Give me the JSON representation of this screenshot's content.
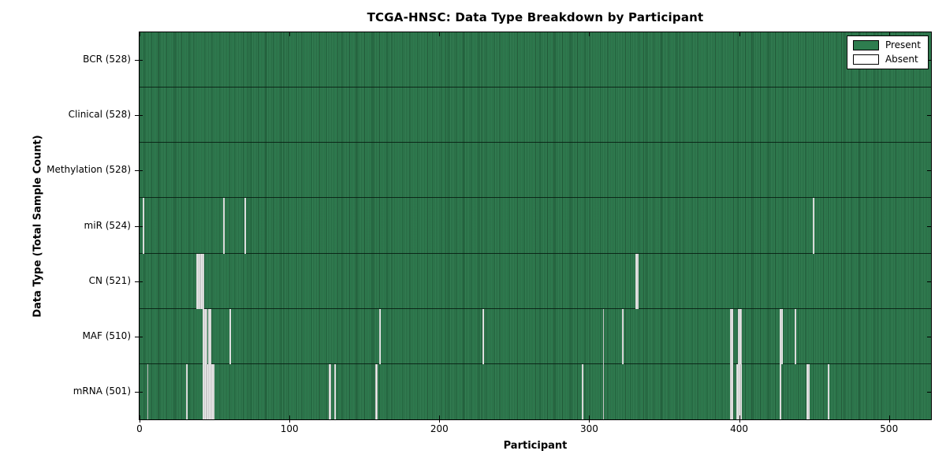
{
  "chart_data": {
    "type": "heatmap",
    "title": "TCGA-HNSC: Data Type Breakdown by Participant",
    "xlabel": "Participant",
    "ylabel": "Data Type (Total Sample Count)",
    "xlim": [
      0,
      528
    ],
    "x_ticks": [
      0,
      100,
      200,
      300,
      400,
      500
    ],
    "n_participants": 528,
    "grid": false,
    "legend_position": "upper-right",
    "colors": {
      "present": "#2e7d4f",
      "absent_fill": "#ededed",
      "legend_absent": "#ffffff",
      "bar_edge": "#000000"
    },
    "legend": [
      {
        "label": "Present",
        "key": "present"
      },
      {
        "label": "Absent",
        "key": "absent"
      }
    ],
    "rows": [
      {
        "label": "BCR (528)",
        "data_type": "BCR",
        "sample_count": 528,
        "absent_participants": []
      },
      {
        "label": "Clinical (528)",
        "data_type": "Clinical",
        "sample_count": 528,
        "absent_participants": []
      },
      {
        "label": "Methylation (528)",
        "data_type": "Methylation",
        "sample_count": 528,
        "absent_participants": []
      },
      {
        "label": "miR (524)",
        "data_type": "miR",
        "sample_count": 524,
        "absent_participants": [
          2,
          56,
          70,
          449
        ]
      },
      {
        "label": "CN (521)",
        "data_type": "CN",
        "sample_count": 521,
        "absent_participants": [
          38,
          39,
          40,
          41,
          42,
          331,
          332
        ]
      },
      {
        "label": "MAF (510)",
        "data_type": "MAF",
        "sample_count": 510,
        "absent_participants": [
          42,
          43,
          44,
          46,
          47,
          60,
          160,
          229,
          309,
          322,
          394,
          395,
          399,
          400,
          401,
          427,
          428,
          437
        ]
      },
      {
        "label": "mRNA (501)",
        "data_type": "mRNA",
        "sample_count": 501,
        "absent_participants": [
          5,
          31,
          42,
          43,
          44,
          45,
          46,
          47,
          48,
          49,
          126,
          127,
          130,
          157,
          158,
          295,
          309,
          394,
          395,
          398,
          399,
          400,
          401,
          427,
          445,
          446,
          459
        ]
      }
    ]
  }
}
